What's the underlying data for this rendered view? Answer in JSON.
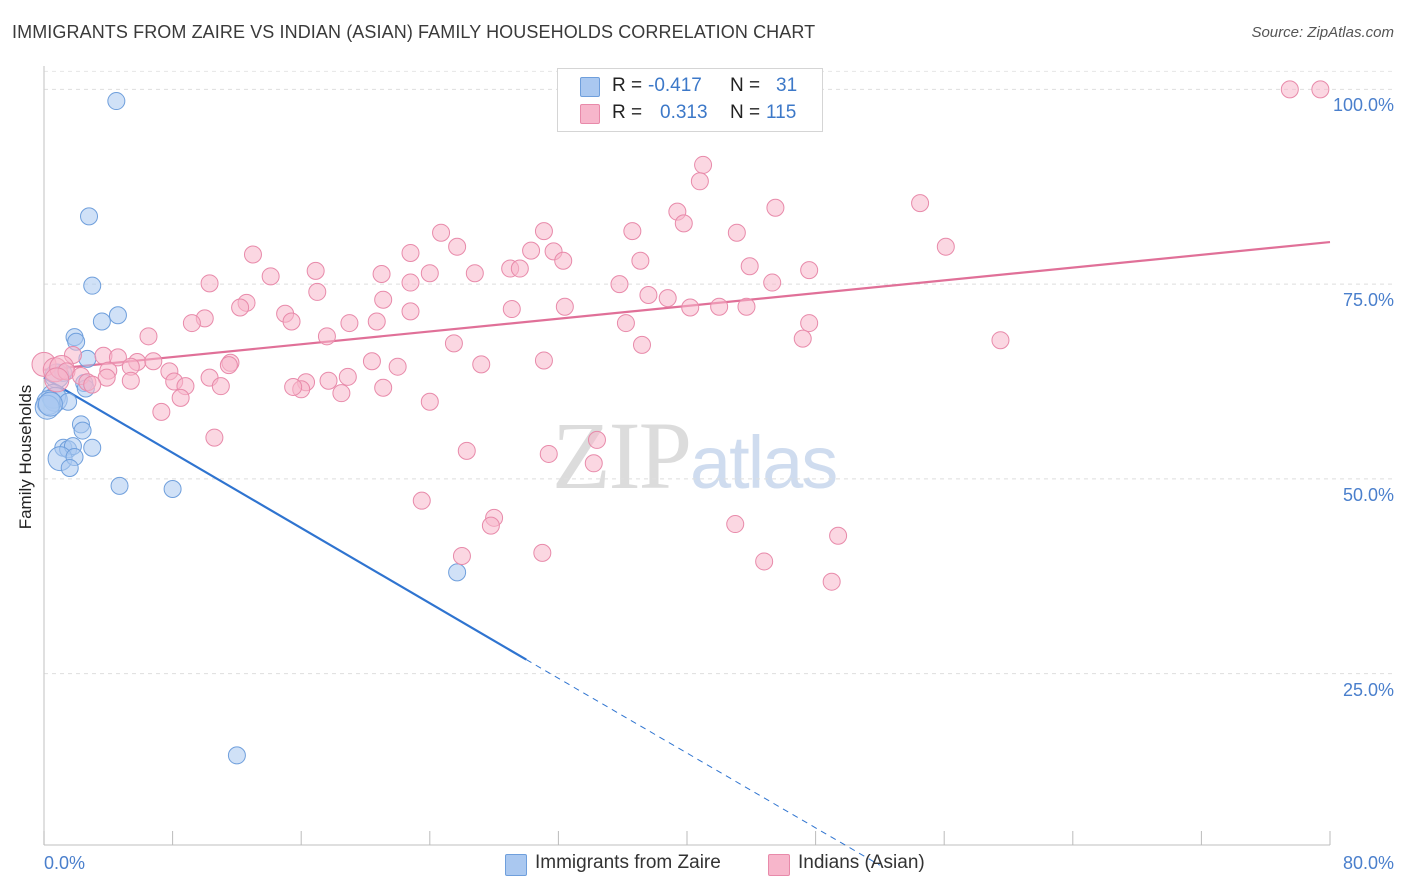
{
  "title": "IMMIGRANTS FROM ZAIRE VS INDIAN (ASIAN) FAMILY HOUSEHOLDS CORRELATION CHART",
  "source": "Source: ZipAtlas.com",
  "watermark": {
    "part1": "ZIP",
    "part2": "atlas"
  },
  "stats": {
    "rows": [
      {
        "r_label": "R =",
        "r_value": "-0.417",
        "n_label": "N =",
        "n_value": "31",
        "color": "#aac8f0"
      },
      {
        "r_label": "R =",
        "r_value": "0.313",
        "n_label": "N =",
        "n_value": "115",
        "color": "#f7b6cb"
      }
    ]
  },
  "legend": [
    {
      "label": "Immigrants from Zaire",
      "color": "#aac8f0"
    },
    {
      "label": "Indians (Asian)",
      "color": "#f7b6cb"
    }
  ],
  "chart_data": {
    "type": "scatter",
    "title": "IMMIGRANTS FROM ZAIRE VS INDIAN (ASIAN) FAMILY HOUSEHOLDS CORRELATION CHART",
    "xlabel": "",
    "ylabel": "Family Households",
    "xlim": [
      0,
      80
    ],
    "ylim": [
      3,
      103
    ],
    "x_tick_labels": [
      "0.0%",
      "80.0%"
    ],
    "y_ticks": [
      25,
      50,
      75,
      100
    ],
    "y_tick_labels": [
      "25.0%",
      "50.0%",
      "75.0%",
      "100.0%"
    ],
    "grid": true,
    "series": [
      {
        "name": "Immigrants from Zaire",
        "color": "#aac8f0",
        "stroke": "#6f9fdc",
        "trend_color": "#2f74d0",
        "trend": {
          "x0": 0,
          "y0": 63.0,
          "x1": 30,
          "y1": 26.8,
          "dash_to_x": 52,
          "dash_to_y": 0.4
        },
        "points": [
          [
            4.5,
            98.5
          ],
          [
            2.8,
            83.7
          ],
          [
            3.0,
            74.8
          ],
          [
            4.6,
            71.0
          ],
          [
            3.6,
            70.2
          ],
          [
            1.9,
            68.2
          ],
          [
            2.0,
            67.6
          ],
          [
            1.2,
            63.6
          ],
          [
            0.8,
            63.2
          ],
          [
            2.7,
            65.4
          ],
          [
            2.5,
            62.3
          ],
          [
            2.6,
            61.6
          ],
          [
            0.6,
            60.6
          ],
          [
            0.7,
            60.2
          ],
          [
            0.3,
            59.8
          ],
          [
            1.5,
            59.9
          ],
          [
            0.2,
            59.2
          ],
          [
            0.4,
            59.6
          ],
          [
            2.3,
            57.0
          ],
          [
            2.4,
            56.2
          ],
          [
            1.2,
            54.0
          ],
          [
            1.5,
            53.8
          ],
          [
            1.8,
            54.2
          ],
          [
            3.0,
            54.0
          ],
          [
            1.0,
            52.6
          ],
          [
            1.9,
            52.8
          ],
          [
            1.6,
            51.4
          ],
          [
            4.7,
            49.1
          ],
          [
            8.0,
            48.7
          ],
          [
            25.7,
            38.0
          ],
          [
            12.0,
            14.5
          ]
        ]
      },
      {
        "name": "Indians (Asian)",
        "color": "#f7b6cb",
        "stroke": "#e88aaa",
        "trend_color": "#e07098",
        "trend": {
          "x0": 0,
          "y0": 64.0,
          "x1": 80,
          "y1": 80.4
        },
        "points": [
          [
            77.5,
            100.0
          ],
          [
            79.4,
            100.0
          ],
          [
            41.0,
            90.3
          ],
          [
            40.8,
            88.2
          ],
          [
            39.4,
            84.3
          ],
          [
            45.5,
            84.8
          ],
          [
            54.5,
            85.4
          ],
          [
            39.8,
            82.8
          ],
          [
            36.6,
            81.8
          ],
          [
            43.1,
            81.6
          ],
          [
            24.7,
            81.6
          ],
          [
            31.1,
            81.8
          ],
          [
            56.1,
            79.8
          ],
          [
            25.7,
            79.8
          ],
          [
            30.3,
            79.3
          ],
          [
            31.7,
            79.2
          ],
          [
            32.3,
            78.0
          ],
          [
            37.1,
            78.0
          ],
          [
            13.0,
            78.8
          ],
          [
            22.8,
            79.0
          ],
          [
            29.0,
            77.0
          ],
          [
            29.6,
            77.0
          ],
          [
            43.9,
            77.3
          ],
          [
            47.6,
            76.8
          ],
          [
            16.9,
            76.7
          ],
          [
            14.1,
            76.0
          ],
          [
            21.0,
            76.3
          ],
          [
            24.0,
            76.4
          ],
          [
            26.8,
            76.4
          ],
          [
            10.3,
            75.1
          ],
          [
            22.8,
            75.2
          ],
          [
            35.8,
            75.0
          ],
          [
            45.3,
            75.2
          ],
          [
            17.0,
            74.0
          ],
          [
            21.1,
            73.0
          ],
          [
            37.6,
            73.6
          ],
          [
            38.8,
            73.2
          ],
          [
            12.6,
            72.6
          ],
          [
            12.2,
            72.0
          ],
          [
            29.1,
            71.8
          ],
          [
            32.4,
            72.1
          ],
          [
            22.8,
            71.5
          ],
          [
            40.2,
            72.0
          ],
          [
            42.0,
            72.1
          ],
          [
            43.7,
            72.1
          ],
          [
            15.0,
            71.2
          ],
          [
            10.0,
            70.6
          ],
          [
            9.2,
            70.0
          ],
          [
            15.4,
            70.2
          ],
          [
            20.7,
            70.2
          ],
          [
            19.0,
            70.0
          ],
          [
            36.2,
            70.0
          ],
          [
            47.6,
            70.0
          ],
          [
            17.6,
            68.3
          ],
          [
            6.5,
            68.3
          ],
          [
            47.2,
            68.0
          ],
          [
            59.5,
            67.8
          ],
          [
            25.5,
            67.4
          ],
          [
            37.2,
            67.2
          ],
          [
            1.8,
            65.9
          ],
          [
            3.7,
            65.8
          ],
          [
            4.6,
            65.6
          ],
          [
            5.8,
            65.0
          ],
          [
            11.6,
            64.9
          ],
          [
            5.4,
            64.4
          ],
          [
            6.8,
            65.1
          ],
          [
            11.5,
            64.6
          ],
          [
            20.4,
            65.1
          ],
          [
            27.2,
            64.7
          ],
          [
            31.1,
            65.2
          ],
          [
            22.0,
            64.4
          ],
          [
            0.0,
            64.7
          ],
          [
            0.7,
            64.0
          ],
          [
            1.1,
            64.3
          ],
          [
            1.4,
            63.8
          ],
          [
            2.3,
            63.2
          ],
          [
            7.8,
            63.8
          ],
          [
            4.0,
            63.9
          ],
          [
            3.9,
            63.0
          ],
          [
            10.3,
            63.0
          ],
          [
            18.9,
            63.1
          ],
          [
            16.3,
            62.4
          ],
          [
            17.7,
            62.6
          ],
          [
            0.8,
            62.7
          ],
          [
            5.4,
            62.6
          ],
          [
            2.7,
            62.4
          ],
          [
            3.0,
            62.1
          ],
          [
            8.1,
            62.5
          ],
          [
            8.8,
            61.9
          ],
          [
            11.0,
            61.9
          ],
          [
            16.0,
            61.5
          ],
          [
            21.1,
            61.7
          ],
          [
            15.5,
            61.8
          ],
          [
            18.5,
            61.0
          ],
          [
            8.5,
            60.4
          ],
          [
            24.0,
            59.9
          ],
          [
            7.3,
            58.6
          ],
          [
            10.6,
            55.3
          ],
          [
            34.4,
            55.0
          ],
          [
            34.2,
            52.0
          ],
          [
            26.3,
            53.6
          ],
          [
            31.4,
            53.2
          ],
          [
            23.5,
            47.2
          ],
          [
            28.0,
            45.0
          ],
          [
            43.0,
            44.2
          ],
          [
            27.8,
            44.0
          ],
          [
            26.0,
            40.1
          ],
          [
            31.0,
            40.5
          ],
          [
            49.4,
            42.7
          ],
          [
            44.8,
            39.4
          ],
          [
            49.0,
            36.8
          ]
        ]
      }
    ]
  }
}
